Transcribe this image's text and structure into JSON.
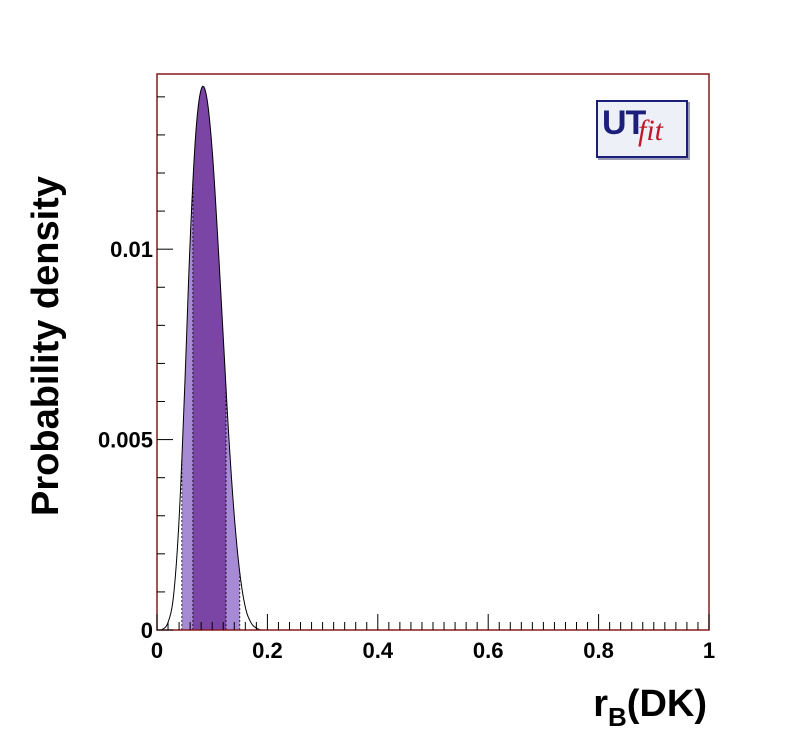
{
  "chart_data": {
    "type": "area",
    "title": "",
    "xlabel_main": "r",
    "xlabel_sub": "B",
    "xlabel_rest": "(DK)",
    "ylabel": "Probability density",
    "xlim": [
      0,
      1
    ],
    "ylim": [
      0,
      0.0146
    ],
    "x_ticks": [
      "0",
      "0.2",
      "0.4",
      "0.6",
      "0.8",
      "1"
    ],
    "y_ticks": [
      "0",
      "0.005",
      "0.01"
    ],
    "series": [
      {
        "x": [
          0.01,
          0.02,
          0.03,
          0.04,
          0.05,
          0.06,
          0.07,
          0.08,
          0.09,
          0.1,
          0.11,
          0.12,
          0.13,
          0.14,
          0.15,
          0.16,
          0.17,
          0.18,
          0.19
        ],
        "y": [
          2e-05,
          0.0002,
          0.0009,
          0.0029,
          0.0063,
          0.0102,
          0.013,
          0.0142,
          0.014,
          0.0126,
          0.0103,
          0.0077,
          0.0051,
          0.003,
          0.0015,
          0.0006,
          0.0002,
          5e-05,
          0.0
        ]
      }
    ],
    "bands": {
      "inner_68": [
        0.065,
        0.125
      ],
      "outer_95": [
        0.045,
        0.15
      ]
    },
    "colors": {
      "inner": "#7a45a4",
      "outer": "#a78ad4",
      "frame": "#8b1a1a",
      "curve": "#000000"
    }
  },
  "logo": {
    "text_a": "UT",
    "text_b": "fit"
  }
}
